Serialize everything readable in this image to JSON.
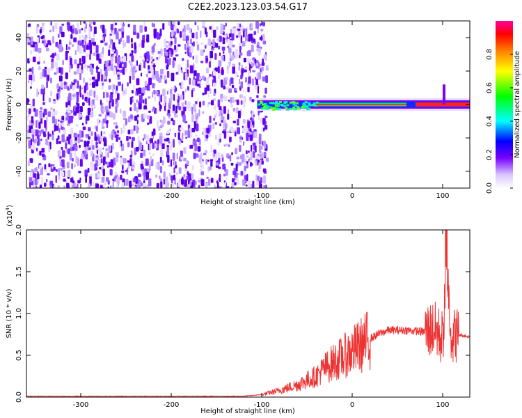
{
  "title": "C2E2.2023.123.03.54.G17",
  "chart_data": [
    {
      "type": "heatmap",
      "xlabel": "Height of straight line (km)",
      "ylabel": "Frequency (Hz)",
      "xlim": [
        -360,
        130
      ],
      "ylim": [
        -50,
        50
      ],
      "xticks": [
        -300,
        -200,
        -100,
        0,
        100
      ],
      "yticks": [
        -40,
        -20,
        0,
        20,
        40
      ],
      "colorbar": {
        "label": "Normalized spectral amplitude",
        "range": [
          0,
          1
        ],
        "ticks": [
          "0.0",
          "0.2",
          "0.4",
          "0.6",
          "0.8"
        ]
      },
      "description_points": {
        "noise_region_x": [
          -360,
          -100
        ],
        "signal_line": {
          "x_start": -105,
          "x_end": 130,
          "frequency": 0
        },
        "signal_peak_amplitude": 0.95
      }
    },
    {
      "type": "line",
      "xlabel": "Height of straight line (km)",
      "ylabel": "SNR (10 * v/v)",
      "yscale_note": "(x10^4)",
      "xlim": [
        -360,
        130
      ],
      "ylim": [
        0,
        2.0
      ],
      "xticks": [
        -300,
        -200,
        -100,
        0,
        100
      ],
      "yticks": [
        "0.0",
        "0.5",
        "1.0",
        "1.5",
        "2.0"
      ],
      "series": [
        {
          "color": "#ee3333",
          "x": [
            -360,
            -300,
            -200,
            -120,
            -100,
            -80,
            -60,
            -40,
            -30,
            -20,
            -10,
            0,
            10,
            20,
            30,
            40,
            60,
            80,
            90,
            100,
            105,
            110,
            115,
            130
          ],
          "y": [
            0.01,
            0.01,
            0.01,
            0.01,
            0.03,
            0.08,
            0.15,
            0.25,
            0.35,
            0.42,
            0.48,
            0.55,
            0.62,
            0.7,
            0.76,
            0.8,
            0.8,
            0.78,
            0.82,
            0.7,
            1.5,
            0.7,
            0.75,
            0.72
          ]
        }
      ]
    }
  ]
}
